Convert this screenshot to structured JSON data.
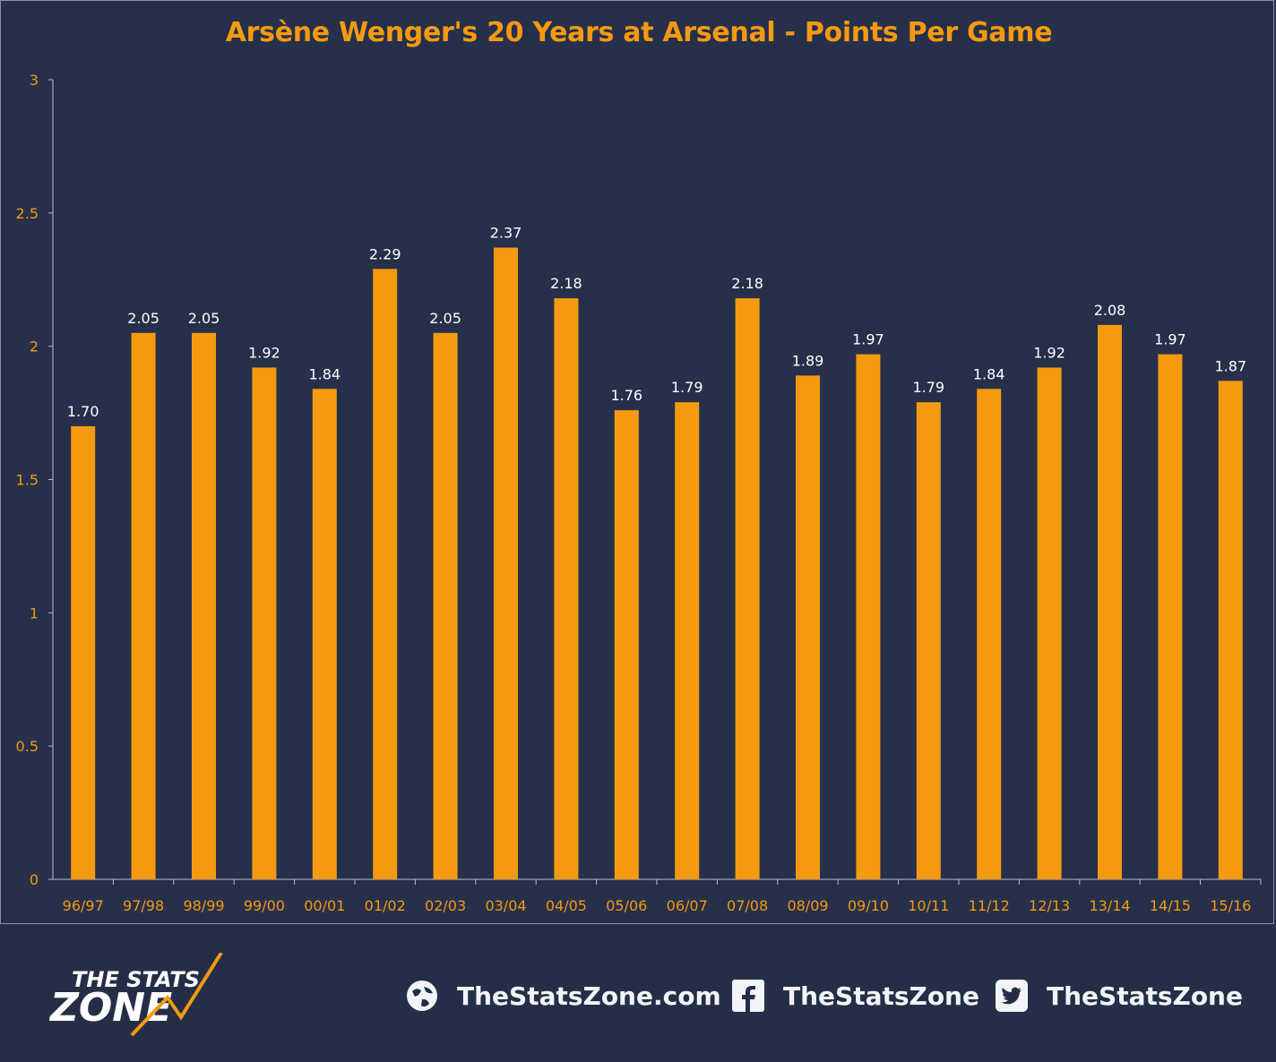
{
  "chart_data": {
    "type": "bar",
    "title": "Arsène Wenger's 20 Years at Arsenal - Points Per Game",
    "categories": [
      "96/97",
      "97/98",
      "98/99",
      "99/00",
      "00/01",
      "01/02",
      "02/03",
      "03/04",
      "04/05",
      "05/06",
      "06/07",
      "07/08",
      "08/09",
      "09/10",
      "10/11",
      "11/12",
      "12/13",
      "13/14",
      "14/15",
      "15/16"
    ],
    "values": [
      1.7,
      2.05,
      2.05,
      1.92,
      1.84,
      2.29,
      2.05,
      2.37,
      2.18,
      1.76,
      1.79,
      2.18,
      1.89,
      1.97,
      1.79,
      1.84,
      1.92,
      2.08,
      1.97,
      1.87
    ],
    "data_labels": [
      "1.70",
      "2.05",
      "2.05",
      "1.92",
      "1.84",
      "2.29",
      "2.05",
      "2.37",
      "2.18",
      "1.76",
      "1.79",
      "2.18",
      "1.89",
      "1.97",
      "1.79",
      "1.84",
      "1.92",
      "2.08",
      "1.97",
      "1.87"
    ],
    "ylim": [
      0,
      3
    ],
    "yticks": [
      "0",
      "0.5",
      "1",
      "1.5",
      "2",
      "2.5",
      "3"
    ],
    "grid": false,
    "legend": "none",
    "colors": {
      "bar": "#f59a10",
      "axis_text": "#f59a10",
      "label_text": "#ffffff",
      "background": "#26304a"
    }
  },
  "footer": {
    "logo_text_top": "THE STATS",
    "logo_text_bottom": "ZONE",
    "website": "TheStatsZone.com",
    "facebook": "TheStatsZone",
    "twitter": "TheStatsZone",
    "icons": [
      "globe-icon",
      "facebook-icon",
      "twitter-icon"
    ]
  }
}
